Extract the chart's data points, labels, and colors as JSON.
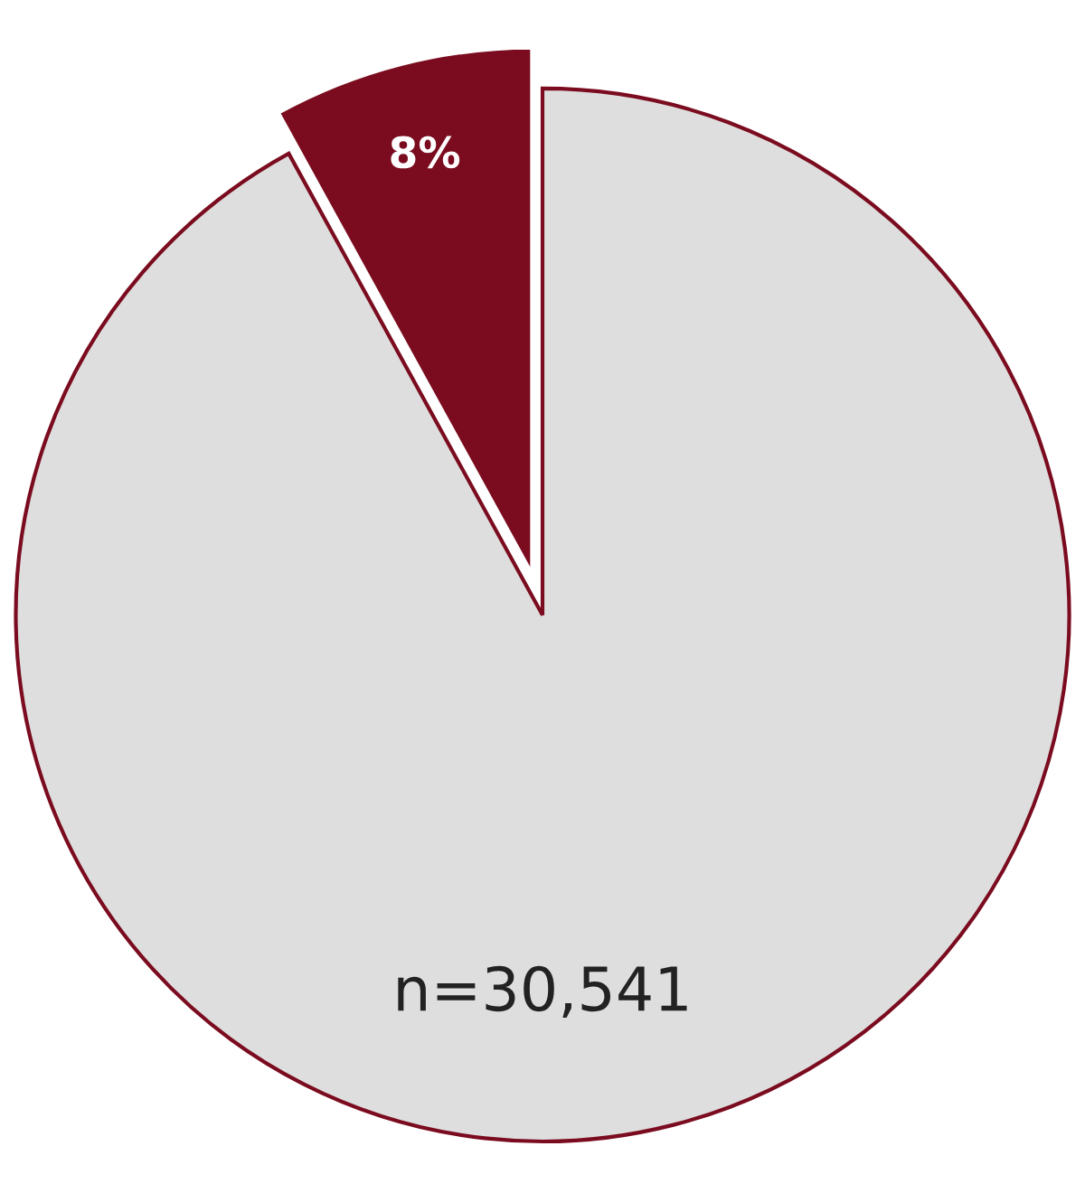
{
  "chart_data": {
    "type": "pie",
    "categories": [
      null,
      null
    ],
    "values": [
      92,
      8
    ],
    "colors": [
      "#dedede",
      "#7b0c1f"
    ],
    "value_labels": [
      null,
      "8%"
    ],
    "annotations": [
      "n=30,541"
    ]
  }
}
